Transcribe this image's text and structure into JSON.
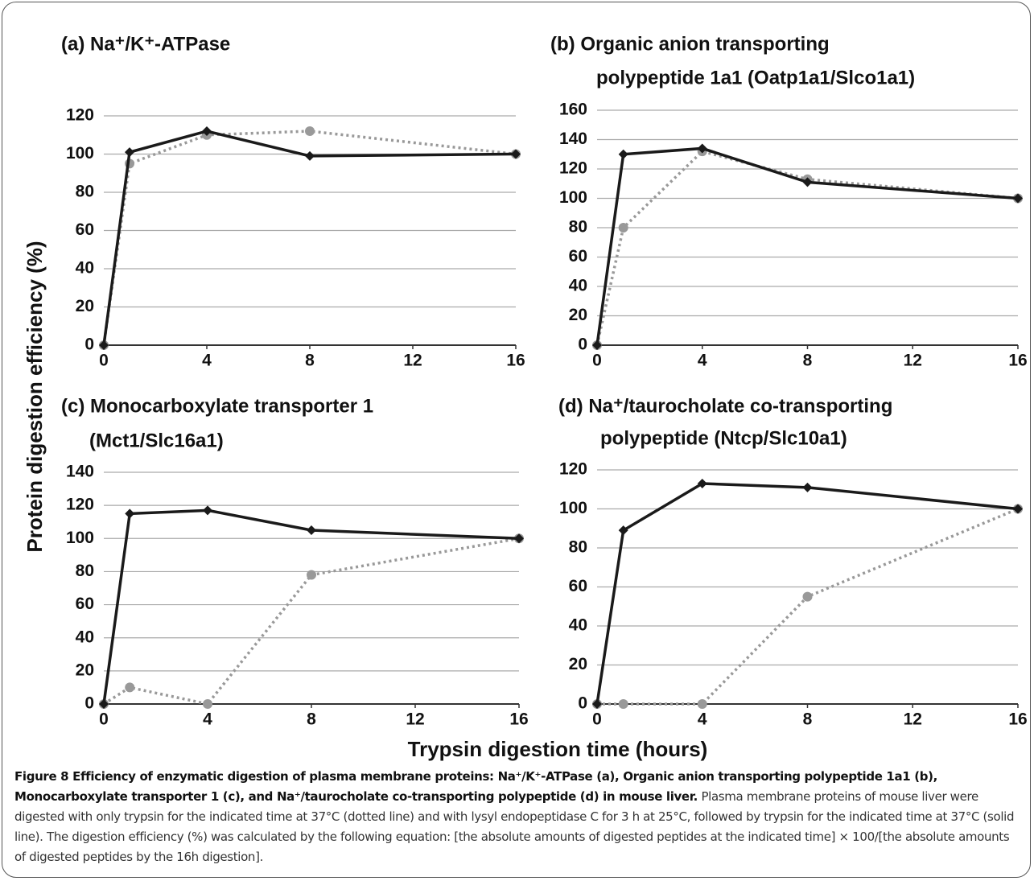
{
  "y_label": "Protein digestion efficiency (%)",
  "x_label": "Trypsin digestion time (hours)",
  "caption": {
    "title": "Figure 8 Efficiency of enzymatic digestion of plasma membrane proteins: Na⁺/K⁺-ATPase (a), Organic anion transporting polypeptide 1a1 (b), Monocarboxylate transporter 1 (c), and Na⁺/taurocholate co-transporting polypeptide (d) in mouse liver.",
    "body": "Plasma membrane proteins of mouse liver were digested with only trypsin for the indicated time at 37°C (dotted line) and with lysyl endopeptidase C for 3 h at 25°C, followed by trypsin for the indicated time at 37°C (solid line). The digestion efficiency (%) was calculated by the following equation: [the absolute amounts of digested peptides at the indicated time] × 100/[the absolute amounts of digested peptides by the 16h digestion]."
  },
  "chart_data": [
    {
      "type": "line",
      "title": [
        "(a) Na⁺/K⁺-ATPase"
      ],
      "x": [
        0,
        1,
        4,
        8,
        16
      ],
      "xlim": [
        0,
        16
      ],
      "xticks": [
        0,
        4,
        8,
        12,
        16
      ],
      "ylim": [
        0,
        120
      ],
      "yticks": [
        0,
        20,
        40,
        60,
        80,
        100,
        120
      ],
      "grid": true,
      "series": [
        {
          "color": "#1a1a1a",
          "line_style": "solid",
          "marker": "diamond",
          "values": [
            0,
            101,
            112,
            99,
            100
          ]
        },
        {
          "color": "#999999",
          "line_style": "dotted",
          "marker": "circle",
          "values": [
            0,
            95,
            110,
            112,
            100
          ]
        }
      ]
    },
    {
      "type": "line",
      "title": [
        "(b) Organic anion transporting",
        "polypeptide 1a1 (Oatp1a1/Slco1a1)"
      ],
      "x": [
        0,
        1,
        4,
        8,
        16
      ],
      "xlim": [
        0,
        16
      ],
      "xticks": [
        0,
        4,
        8,
        12,
        16
      ],
      "ylim": [
        0,
        160
      ],
      "yticks": [
        0,
        20,
        40,
        60,
        80,
        100,
        120,
        140,
        160
      ],
      "grid": true,
      "series": [
        {
          "color": "#1a1a1a",
          "line_style": "solid",
          "marker": "diamond",
          "values": [
            0,
            130,
            134,
            111,
            100
          ]
        },
        {
          "color": "#999999",
          "line_style": "dotted",
          "marker": "circle",
          "values": [
            0,
            80,
            132,
            113,
            100
          ]
        }
      ]
    },
    {
      "type": "line",
      "title": [
        "(c) Monocarboxylate transporter 1",
        "(Mct1/Slc16a1)"
      ],
      "x": [
        0,
        1,
        4,
        8,
        16
      ],
      "xlim": [
        0,
        16
      ],
      "xticks": [
        0,
        4,
        8,
        12,
        16
      ],
      "ylim": [
        0,
        140
      ],
      "yticks": [
        0,
        20,
        40,
        60,
        80,
        100,
        120,
        140
      ],
      "grid": true,
      "series": [
        {
          "color": "#1a1a1a",
          "line_style": "solid",
          "marker": "diamond",
          "values": [
            0,
            115,
            117,
            105,
            100
          ]
        },
        {
          "color": "#999999",
          "line_style": "dotted",
          "marker": "circle",
          "values": [
            0,
            10,
            0,
            78,
            100
          ]
        }
      ]
    },
    {
      "type": "line",
      "title": [
        "(d) Na⁺/taurocholate co-transporting",
        "polypeptide (Ntcp/Slc10a1)"
      ],
      "x": [
        0,
        1,
        4,
        8,
        16
      ],
      "xlim": [
        0,
        16
      ],
      "xticks": [
        0,
        4,
        8,
        12,
        16
      ],
      "ylim": [
        0,
        120
      ],
      "yticks": [
        0,
        20,
        40,
        60,
        80,
        100,
        120
      ],
      "grid": true,
      "series": [
        {
          "color": "#1a1a1a",
          "line_style": "solid",
          "marker": "diamond",
          "values": [
            0,
            89,
            113,
            111,
            100
          ]
        },
        {
          "color": "#999999",
          "line_style": "dotted",
          "marker": "circle",
          "values": [
            0,
            0,
            0,
            55,
            100
          ]
        }
      ]
    }
  ]
}
